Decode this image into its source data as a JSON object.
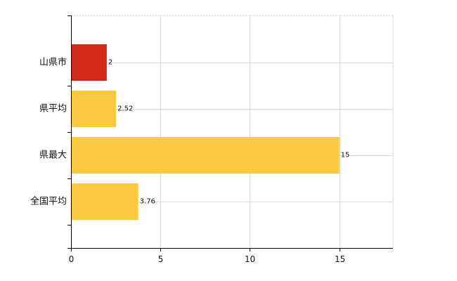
{
  "chart_data": {
    "type": "bar",
    "orientation": "horizontal",
    "categories": [
      "山県市",
      "県平均",
      "県最大",
      "全国平均"
    ],
    "values": [
      2,
      2.52,
      15,
      3.76
    ],
    "data_labels": [
      "2",
      "2.52",
      "15",
      "3.76"
    ],
    "bar_colors": [
      "#d2281b",
      "#f9c940",
      "#f9c940",
      "#f9c940"
    ],
    "xlim": [
      0,
      18
    ],
    "xticks": [
      0,
      5,
      10,
      15
    ],
    "xtick_labels": [
      "0",
      "5",
      "10",
      "15"
    ],
    "grid": true,
    "title": "",
    "xlabel": "",
    "ylabel": ""
  }
}
